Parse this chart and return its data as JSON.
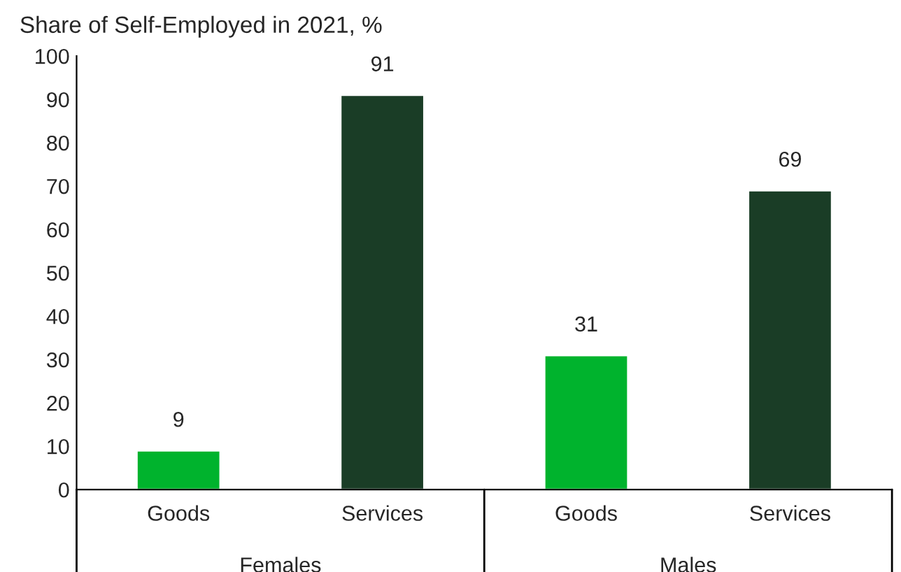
{
  "chart_data": {
    "type": "bar",
    "title": "Share of Self-Employed in 2021, %",
    "categories": [
      "Goods",
      "Services",
      "Goods",
      "Services"
    ],
    "values": [
      9,
      91,
      31,
      69
    ],
    "colors": [
      "#00b32d",
      "#1a3d26",
      "#00b32d",
      "#1a3d26"
    ],
    "annotations": [
      "Females",
      "Males"
    ],
    "ylim": [
      0,
      100
    ],
    "yticks": [
      0,
      10,
      20,
      30,
      40,
      50,
      60,
      70,
      80,
      90,
      100
    ],
    "data_labels": true,
    "grid": false,
    "legend": false
  }
}
